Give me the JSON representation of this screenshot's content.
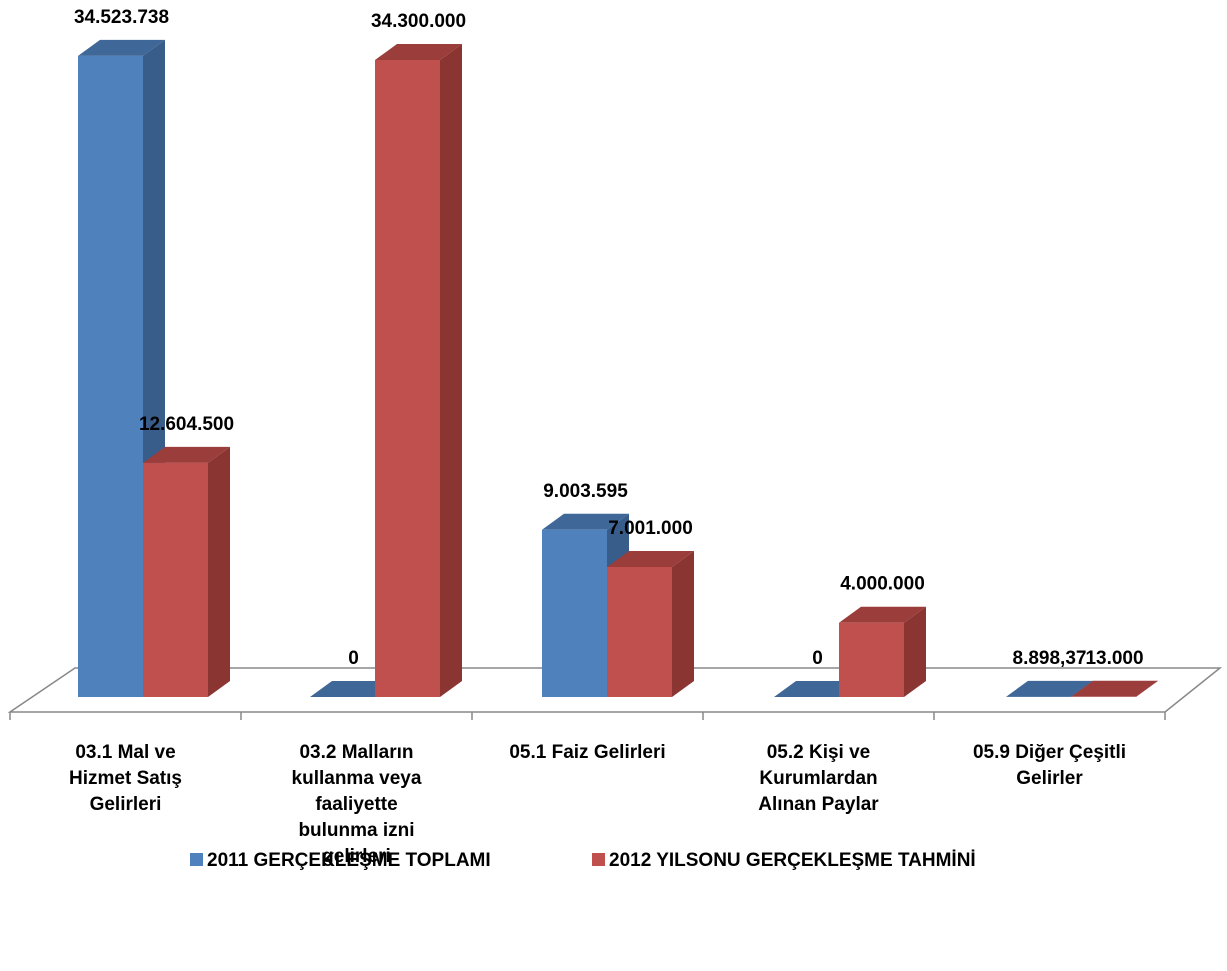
{
  "chart_data": {
    "type": "bar3d",
    "categories": [
      [
        "03.1 Mal ve",
        "Hizmet Satış",
        "Gelirleri"
      ],
      [
        "03.2 Malların",
        "kullanma veya",
        "faaliyette",
        "bulunma izni",
        "gelirleri"
      ],
      [
        "05.1 Faiz Gelirleri"
      ],
      [
        "05.2 Kişi ve",
        "Kurumlardan",
        "Alınan Paylar"
      ],
      [
        "05.9 Diğer Çeşitli",
        "Gelirler"
      ]
    ],
    "series": [
      {
        "name": "2011 GERÇEKLEŞME TOPLAMI",
        "color": "#4f81bd",
        "side": "#385d8a",
        "top": "#3f6797",
        "values": [
          34523738,
          0,
          9003595,
          0,
          8898.37
        ],
        "value_labels": [
          "34.523.738",
          "0",
          "9.003.595",
          "0",
          "8.898,37"
        ]
      },
      {
        "name": "2012 YILSONU GERÇEKLEŞME TAHMİNİ",
        "color": "#c0504d",
        "side": "#8b3533",
        "top": "#9b3e3b",
        "values": [
          12604500,
          34300000,
          7001000,
          4000000,
          13000
        ],
        "value_labels": [
          "12.604.500",
          "34.300.000",
          "7.001.000",
          "4.000.000",
          "13.000"
        ]
      }
    ],
    "ylim": [
      0,
      35000000
    ],
    "legend": "bottom"
  }
}
